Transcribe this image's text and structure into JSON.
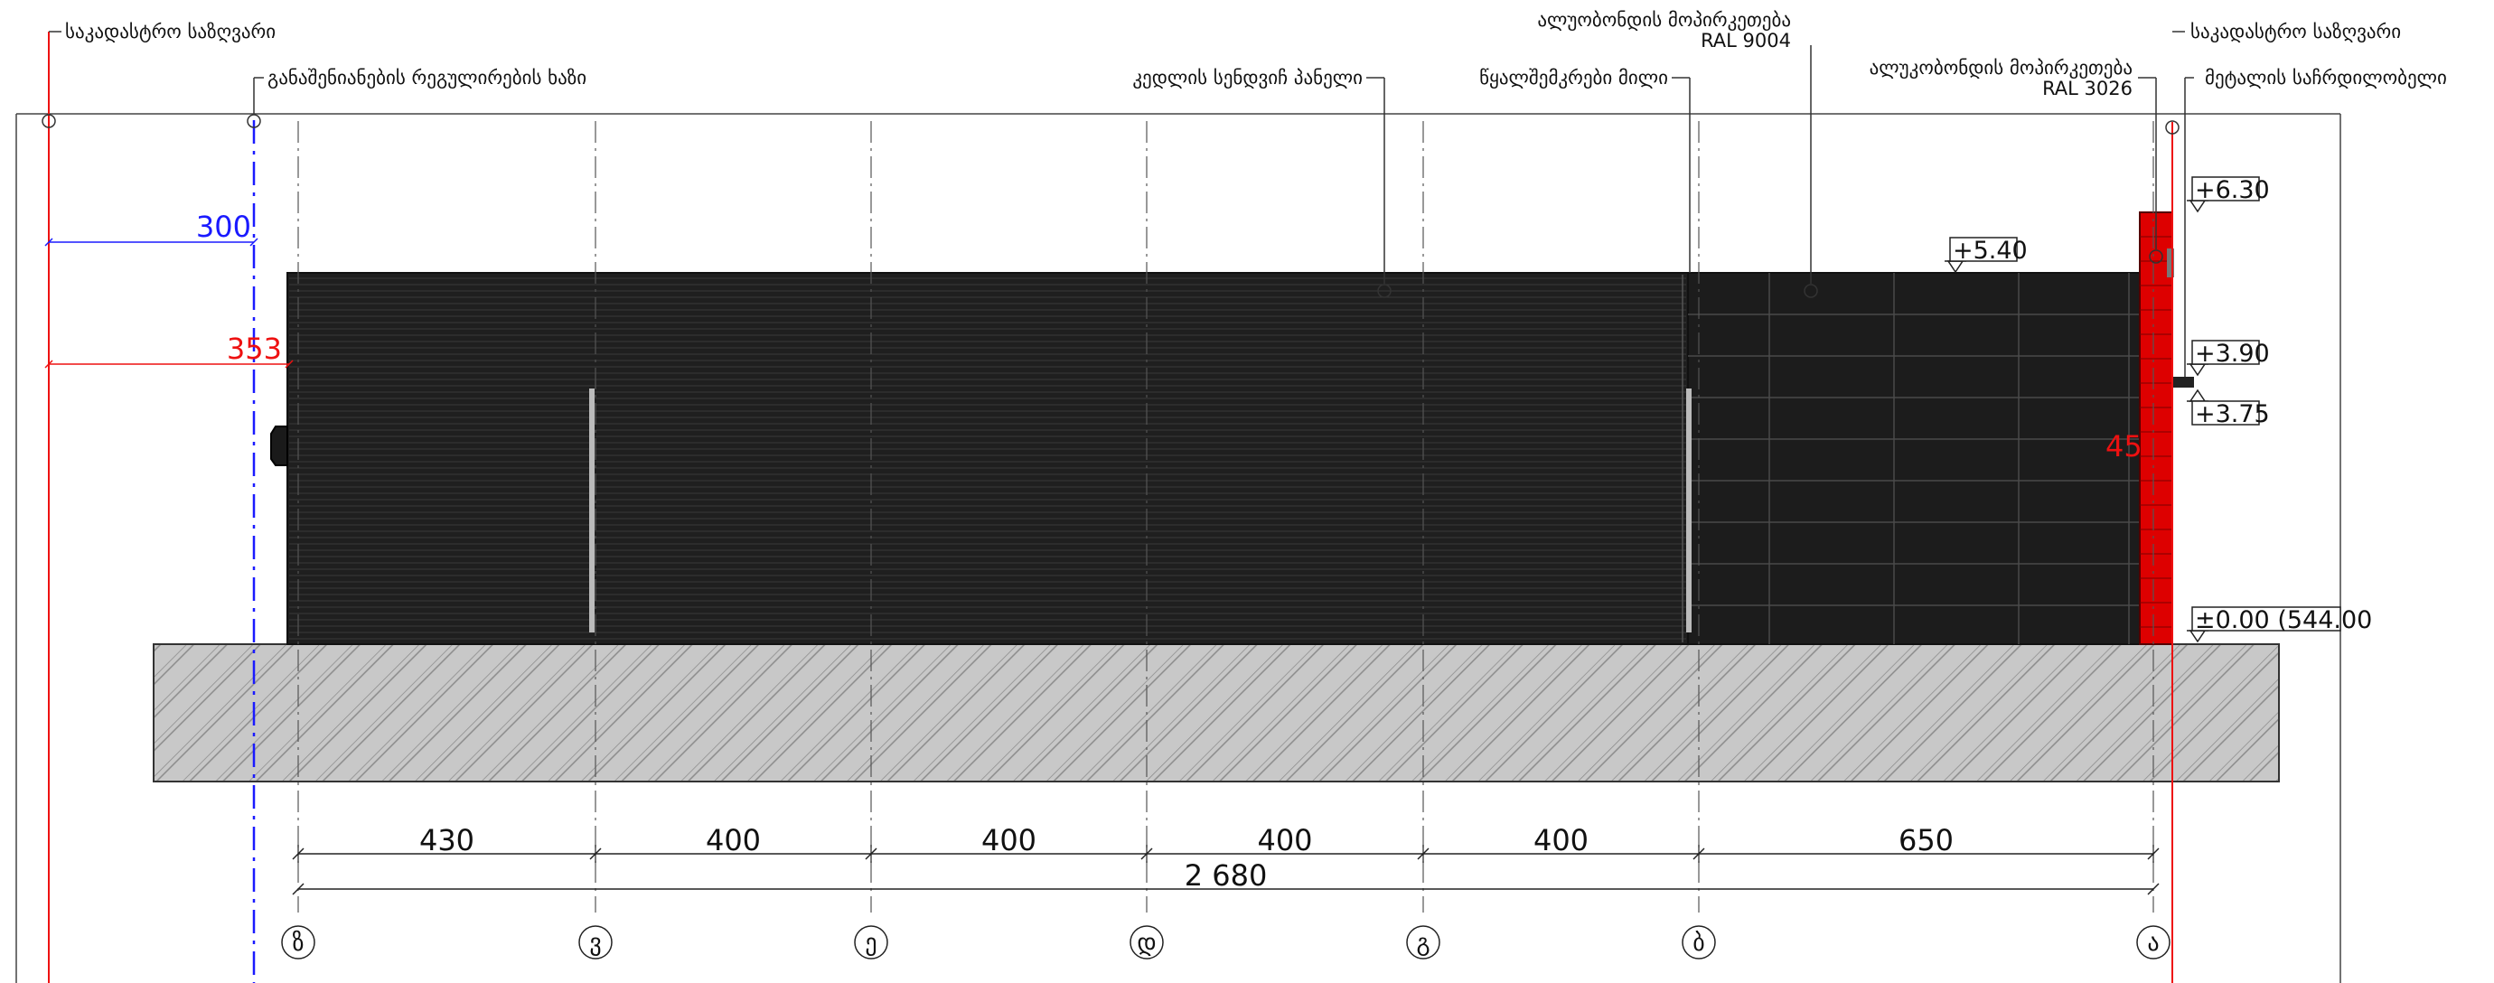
{
  "annotations": {
    "cadastral_boundary_left": "საკადასტრო საზღვარი",
    "building_regulation_line": "განაშენიანების რეგულირების ხაზი",
    "wall_sandwich_panel": "კედლის სენდვიჩ პანელი",
    "drainpipe": "წყალშემკრები მილი",
    "alucobond_cladding_9004_line1": "ალუობონდის მოპირკეთება",
    "alucobond_cladding_9004_line2": "RAL 9004",
    "alucobond_cladding_3026_line1": "ალუკობონდის მოპირკეთება",
    "alucobond_cladding_3026_line2": "RAL 3026",
    "cadastral_boundary_right": "საკადასტრო საზღვარი",
    "metal_support": "მეტალის საჩრდილობელი"
  },
  "offsets": {
    "blue_value": "300",
    "red_value": "353",
    "red_value_2": "45",
    "blue_color": "#1a1aff",
    "red_color": "#ee1111"
  },
  "elevations": [
    {
      "label": "+6.30"
    },
    {
      "label": "+5.40"
    },
    {
      "label": "+3.90"
    },
    {
      "label": "+3.75"
    },
    {
      "label": "±0.00 (544.00"
    }
  ],
  "dimensions": {
    "segments": [
      "430",
      "400",
      "400",
      "400",
      "400",
      "650"
    ],
    "total": "2 680"
  },
  "axes": [
    "ზ",
    "ვ",
    "ე",
    "დ",
    "გ",
    "ბ",
    "ა"
  ],
  "colors": {
    "panel": "#1f1f1f",
    "panel_lines": "#3a3a3a",
    "red_column": "#dd0000",
    "foundation_fill": "#c8c8c8",
    "line": "#222222"
  }
}
